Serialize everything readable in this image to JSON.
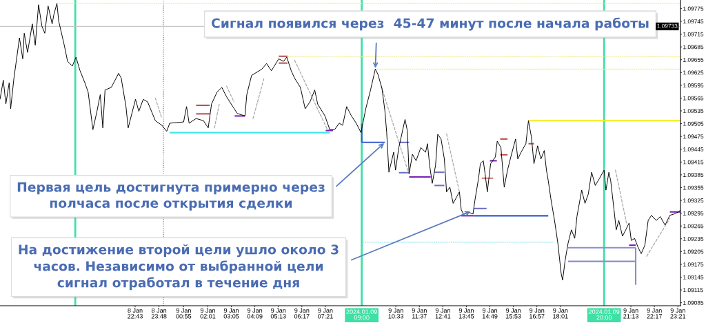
{
  "chart_data": {
    "type": "line",
    "annotations": [
      {
        "text": "Сигнал появился через  45-47 минут после начала работы",
        "x": "2024-01-09T09:37",
        "y": 1.09633
      },
      {
        "text": "Первая цель достигнута примерно через\nполчаса после открытия сделки",
        "x": "2024-01-09T10:03",
        "y": 1.09461
      },
      {
        "text": "На достижение второй цели ушло около 3\nчасов. Независимо от выбранной цели\nсигнал отработал в течение дня",
        "x": "2024-01-09T13:59",
        "y": 1.093
      }
    ],
    "series": [
      {
        "color": "#000000",
        "x": [
          "2024-01-08T16:35",
          "2024-01-08T16:44",
          "2024-01-08T16:51",
          "2024-01-08T17:00",
          "2024-01-08T17:04",
          "2024-01-08T17:13",
          "2024-01-08T17:28",
          "2024-01-08T17:37",
          "2024-01-08T17:41",
          "2024-01-08T17:50",
          "2024-01-08T18:03",
          "2024-01-08T18:11",
          "2024-01-08T18:20",
          "2024-01-08T18:29",
          "2024-01-08T18:37",
          "2024-01-08T18:46",
          "2024-01-08T18:57",
          "2024-01-08T19:02",
          "2024-01-08T19:10",
          "2024-01-08T19:15",
          "2024-01-08T19:30",
          "2024-01-08T19:39",
          "2024-01-08T19:52",
          "2024-01-08T20:02",
          "2024-01-08T20:13",
          "2024-01-08T20:26",
          "2024-01-08T20:35",
          "2024-01-08T20:48",
          "2024-01-08T20:59",
          "2024-01-08T21:08",
          "2024-01-08T21:15",
          "2024-01-08T21:21",
          "2024-01-08T21:38",
          "2024-01-08T21:58",
          "2024-01-08T22:05",
          "2024-01-08T22:18",
          "2024-01-08T22:24",
          "2024-01-08T22:44",
          "2024-01-08T22:53",
          "2024-01-08T23:05",
          "2024-01-08T23:17",
          "2024-01-08T23:38",
          "2024-01-08T23:56",
          "2024-01-09T00:09",
          "2024-01-09T00:17",
          "2024-01-09T00:55",
          "2024-01-09T01:03",
          "2024-01-09T01:10",
          "2024-01-09T01:29",
          "2024-01-09T01:49",
          "2024-01-09T02:02",
          "2024-01-09T02:11",
          "2024-01-09T02:26",
          "2024-01-09T02:39",
          "2024-01-09T02:52",
          "2024-01-09T03:09",
          "2024-01-09T03:21",
          "2024-01-09T03:42",
          "2024-01-09T03:47",
          "2024-01-09T04:00",
          "2024-01-09T04:28",
          "2024-01-09T04:41",
          "2024-01-09T04:54",
          "2024-01-09T05:14",
          "2024-01-09T05:27",
          "2024-01-09T05:36",
          "2024-01-09T05:48",
          "2024-01-09T05:57",
          "2024-01-09T06:13",
          "2024-01-09T06:26",
          "2024-01-09T06:39",
          "2024-01-09T06:52",
          "2024-01-09T07:00",
          "2024-01-09T07:20",
          "2024-01-09T07:33",
          "2024-01-09T07:46",
          "2024-01-09T07:59",
          "2024-01-09T08:08",
          "2024-01-09T08:19",
          "2024-01-09T08:32",
          "2024-01-09T08:45",
          "2024-01-09T08:58",
          "2024-01-09T09:11",
          "2024-01-09T09:24",
          "2024-01-09T09:37",
          "2024-01-09T09:44",
          "2024-01-09T09:55",
          "2024-01-09T10:03",
          "2024-01-09T10:08",
          "2024-01-09T10:14",
          "2024-01-09T10:27",
          "2024-01-09T10:32",
          "2024-01-09T10:41",
          "2024-01-09T10:49",
          "2024-01-09T10:58",
          "2024-01-09T11:04",
          "2024-01-09T11:09",
          "2024-01-09T11:18",
          "2024-01-09T11:28",
          "2024-01-09T11:41",
          "2024-01-09T11:54",
          "2024-01-09T11:59",
          "2024-01-09T12:05",
          "2024-01-09T12:12",
          "2024-01-09T12:21",
          "2024-01-09T12:27",
          "2024-01-09T12:36",
          "2024-01-09T12:45",
          "2024-01-09T12:51",
          "2024-01-09T13:00",
          "2024-01-09T13:09",
          "2024-01-09T13:19",
          "2024-01-09T13:26",
          "2024-01-09T13:31",
          "2024-01-09T13:37",
          "2024-01-09T13:50",
          "2024-01-09T14:03",
          "2024-01-09T14:08",
          "2024-01-09T14:18",
          "2024-01-09T14:23",
          "2024-01-09T14:31",
          "2024-01-09T14:36",
          "2024-01-09T14:42",
          "2024-01-09T14:51",
          "2024-01-09T15:04",
          "2024-01-09T15:09",
          "2024-01-09T15:19",
          "2024-01-09T15:28",
          "2024-01-09T15:37",
          "2024-01-09T15:46",
          "2024-01-09T15:59",
          "2024-01-09T16:05",
          "2024-01-09T16:14",
          "2024-01-09T16:27",
          "2024-01-09T16:34",
          "2024-01-09T16:42",
          "2024-01-09T16:49",
          "2024-01-09T16:59",
          "2024-01-09T17:08",
          "2024-01-09T17:17",
          "2024-01-09T17:23",
          "2024-01-09T17:28",
          "2024-01-09T17:35",
          "2024-01-09T17:45",
          "2024-01-09T17:54",
          "2024-01-09T18:03",
          "2024-01-09T18:07",
          "2024-01-09T18:14",
          "2024-01-09T18:22",
          "2024-01-09T18:31",
          "2024-01-09T18:40",
          "2024-01-09T18:46",
          "2024-01-09T18:59",
          "2024-01-09T19:08",
          "2024-01-09T19:17",
          "2024-01-09T19:26",
          "2024-01-09T19:36",
          "2024-01-09T19:47",
          "2024-01-09T20:00",
          "2024-01-09T20:05",
          "2024-01-09T20:13",
          "2024-01-09T20:18",
          "2024-01-09T20:27",
          "2024-01-09T20:33",
          "2024-01-09T20:40",
          "2024-01-09T20:50",
          "2024-01-09T20:59",
          "2024-01-09T21:08",
          "2024-01-09T21:14",
          "2024-01-09T21:23",
          "2024-01-09T21:32",
          "2024-01-09T21:41",
          "2024-01-09T21:51",
          "2024-01-09T22:00",
          "2024-01-09T22:09",
          "2024-01-09T22:22",
          "2024-01-09T22:33",
          "2024-01-09T22:46",
          "2024-01-09T22:59",
          "2024-01-09T23:10",
          "2024-01-09T23:23",
          "2024-01-09T23:28"
        ],
        "values": [
          1.09562,
          1.09607,
          1.09551,
          1.09601,
          1.0954,
          1.09612,
          1.09706,
          1.09657,
          1.09717,
          1.09672,
          1.09739,
          1.09689,
          1.09784,
          1.09734,
          1.09717,
          1.09781,
          1.09739,
          1.09762,
          1.09787,
          1.09745,
          1.09689,
          1.09651,
          1.0964,
          1.09661,
          1.09629,
          1.09601,
          1.09579,
          1.09491,
          1.09534,
          1.09573,
          1.09495,
          1.09584,
          1.0959,
          1.09623,
          1.09612,
          1.09545,
          1.09495,
          1.09562,
          1.09534,
          1.09562,
          1.09556,
          1.09512,
          1.09501,
          1.09487,
          1.09506,
          1.09509,
          1.09545,
          1.09506,
          1.09517,
          1.09512,
          1.09495,
          1.09551,
          1.09579,
          1.0959,
          1.09568,
          1.09545,
          1.09529,
          1.09523,
          1.09573,
          1.09618,
          1.09633,
          1.09646,
          1.09629,
          1.09657,
          1.09651,
          1.09661,
          1.09629,
          1.09612,
          1.0959,
          1.0954,
          1.09556,
          1.09584,
          1.09551,
          1.09523,
          1.09491,
          1.09491,
          1.09506,
          1.09501,
          1.09545,
          1.09523,
          1.09506,
          1.09484,
          1.0954,
          1.09584,
          1.09633,
          1.09621,
          1.09588,
          1.09536,
          1.09484,
          1.09391,
          1.09438,
          1.09396,
          1.09449,
          1.0948,
          1.09515,
          1.09489,
          1.09387,
          1.09433,
          1.09418,
          1.09449,
          1.09438,
          1.09458,
          1.09407,
          1.09365,
          1.09407,
          1.0948,
          1.09469,
          1.09422,
          1.09345,
          1.09356,
          1.09318,
          1.09334,
          1.09345,
          1.09303,
          1.09293,
          1.09298,
          1.09293,
          1.09324,
          1.09376,
          1.09411,
          1.09418,
          1.09387,
          1.09345,
          1.09411,
          1.09427,
          1.09464,
          1.09449,
          1.09356,
          1.09396,
          1.09427,
          1.09469,
          1.09422,
          1.09438,
          1.09458,
          1.09512,
          1.09474,
          1.09411,
          1.09453,
          1.09422,
          1.09442,
          1.09396,
          1.09371,
          1.09329,
          1.09278,
          1.09225,
          1.09154,
          1.09138,
          1.09185,
          1.09225,
          1.09256,
          1.09236,
          1.09287,
          1.09349,
          1.09318,
          1.0934,
          1.09391,
          1.0936,
          1.09376,
          1.09396,
          1.09349,
          1.09391,
          1.09371,
          1.09303,
          1.09256,
          1.09278,
          1.09241,
          1.09256,
          1.09272,
          1.09231,
          1.09236,
          1.09216,
          1.092,
          1.0922,
          1.09278,
          1.0929,
          1.09278,
          1.09287,
          1.09267,
          1.0929,
          1.09293,
          1.09298,
          1.09303
        ]
      },
      {
        "color": "#3ee6e6",
        "x": [
          "2024-01-09T00:17",
          "2024-01-09T07:33"
        ],
        "values": [
          1.09484,
          1.09484
        ]
      },
      {
        "color": "#3a5bd0",
        "x": [
          "2024-01-09T09:00",
          "2024-01-09T10:03"
        ],
        "values": [
          1.09461,
          1.09461
        ]
      },
      {
        "color": "#3a5bd0",
        "x": [
          "2024-01-09T09:00",
          "2024-01-09T09:00"
        ],
        "values": [
          1.09505,
          1.09461
        ]
      },
      {
        "color": "#7a22b8",
        "x": [
          "2024-01-09T13:31",
          "2024-01-09T14:03"
        ],
        "values": [
          1.09289,
          1.09289
        ]
      },
      {
        "color": "#3a5bd0",
        "x": [
          "2024-01-09T14:03",
          "2024-01-09T17:28"
        ],
        "values": [
          1.09289,
          1.09289
        ]
      },
      {
        "color": "#f2ec1c",
        "x": [
          "2024-01-09T16:34",
          "2024-01-09T23:28"
        ],
        "values": [
          1.09512,
          1.09512
        ]
      },
      {
        "color": "#eee98a",
        "line_style": "dotted",
        "x": [
          "2024-01-08T19:10",
          "2024-01-09T23:28"
        ],
        "values": [
          1.09787,
          1.09787
        ]
      },
      {
        "color": "#eee98a",
        "line_style": "dotted",
        "x": [
          "2024-01-09T05:40",
          "2024-01-09T23:28"
        ],
        "values": [
          1.09663,
          1.09663
        ]
      },
      {
        "color": "#eee98a",
        "line_style": "dotted",
        "x": [
          "2024-01-09T09:37",
          "2024-01-09T23:28"
        ],
        "values": [
          1.09633,
          1.09633
        ]
      },
      {
        "color": "#8fe3ee",
        "line_style": "dotted",
        "x": [
          "2024-01-09T09:03",
          "2024-01-09T17:41"
        ],
        "values": [
          1.09227,
          1.09227
        ]
      },
      {
        "color": "#7a22b8",
        "x": [
          "2024-01-09T11:09",
          "2024-01-09T12:08"
        ],
        "values": [
          1.0938,
          1.0938
        ]
      },
      {
        "color": "#7a22b8",
        "x": [
          "2024-01-09T14:49",
          "2024-01-09T15:08"
        ],
        "values": [
          1.09418,
          1.09418
        ]
      },
      {
        "color": "#7a22b8",
        "x": [
          "2024-01-09T21:08",
          "2024-01-09T21:26"
        ],
        "values": [
          1.0922,
          1.0922
        ]
      },
      {
        "color": "#7a22b8",
        "x": [
          "2024-01-09T22:59",
          "2024-01-09T23:28"
        ],
        "values": [
          1.09298,
          1.09298
        ]
      },
      {
        "color": "#7a22b8",
        "x": [
          "2024-01-09T07:22",
          "2024-01-09T07:42"
        ],
        "values": [
          1.09489,
          1.09489
        ]
      },
      {
        "color": "#7a22b8",
        "x": [
          "2024-01-09T03:14",
          "2024-01-09T03:42"
        ],
        "values": [
          1.09523,
          1.09523
        ]
      },
      {
        "color": "#b85450",
        "x": [
          "2024-01-09T01:29",
          "2024-01-09T02:06"
        ],
        "values": [
          1.09548,
          1.09548
        ]
      },
      {
        "color": "#b85450",
        "x": [
          "2024-01-09T01:29",
          "2024-01-09T02:06"
        ],
        "values": [
          1.09528,
          1.09528
        ]
      },
      {
        "color": "#b85450",
        "x": [
          "2024-01-09T05:14",
          "2024-01-09T05:38"
        ],
        "values": [
          1.09663,
          1.09663
        ]
      },
      {
        "color": "#b85450",
        "x": [
          "2024-01-09T05:14",
          "2024-01-09T05:38"
        ],
        "values": [
          1.09647,
          1.09647
        ]
      },
      {
        "color": "#6f6fc0",
        "x": [
          "2024-01-09T10:41",
          "2024-01-09T11:09"
        ],
        "values": [
          1.09461,
          1.09461
        ]
      },
      {
        "color": "#6f6fc0",
        "x": [
          "2024-01-09T10:41",
          "2024-01-09T11:09"
        ],
        "values": [
          1.0939,
          1.0939
        ]
      },
      {
        "color": "#6f6fc0",
        "x": [
          "2024-01-09T12:18",
          "2024-01-09T12:45"
        ],
        "values": [
          1.09391,
          1.09391
        ]
      },
      {
        "color": "#6f6fc0",
        "x": [
          "2024-01-09T12:18",
          "2024-01-09T12:45"
        ],
        "values": [
          1.0936,
          1.0936
        ]
      },
      {
        "color": "#d08080",
        "x": [
          "2024-01-09T14:27",
          "2024-01-09T14:58"
        ],
        "values": [
          1.09377,
          1.09377
        ]
      },
      {
        "color": "#b85450",
        "x": [
          "2024-01-09T15:17",
          "2024-01-09T15:37"
        ],
        "values": [
          1.09469,
          1.09469
        ]
      },
      {
        "color": "#b85450",
        "x": [
          "2024-01-09T15:17",
          "2024-01-09T15:37"
        ],
        "values": [
          1.09432,
          1.09432
        ]
      },
      {
        "color": "#b85450",
        "x": [
          "2024-01-09T16:34",
          "2024-01-09T16:49"
        ],
        "values": [
          1.09458,
          1.09458
        ]
      },
      {
        "color": "#6f6fc0",
        "x": [
          "2024-01-09T14:05",
          "2024-01-09T14:40"
        ],
        "values": [
          1.09306,
          1.09306
        ]
      },
      {
        "color": "#8c8cd0",
        "x": [
          "2024-01-09T18:22",
          "2024-01-09T21:26"
        ],
        "values": [
          1.09214,
          1.09214
        ]
      },
      {
        "color": "#8c8cd0",
        "x": [
          "2024-01-09T18:22",
          "2024-01-09T21:26"
        ],
        "values": [
          1.09182,
          1.09182
        ]
      },
      {
        "color": "#8c8cd0",
        "x": [
          "2024-01-09T21:26",
          "2024-01-09T21:26"
        ],
        "values": [
          1.09214,
          1.09127
        ]
      },
      {
        "color": "#a8a8a8",
        "line_style": "dashed",
        "x": [
          "2024-01-08T23:38",
          "2024-01-08T23:56"
        ],
        "values": [
          1.09565,
          1.09517
        ]
      },
      {
        "color": "#a8a8a8",
        "line_style": "dashed",
        "x": [
          "2024-01-09T02:19",
          "2024-01-09T02:32"
        ],
        "values": [
          1.09495,
          1.09551
        ]
      },
      {
        "color": "#a8a8a8",
        "line_style": "dashed",
        "x": [
          "2024-01-09T02:52",
          "2024-01-09T03:12"
        ],
        "values": [
          1.09593,
          1.09556
        ]
      },
      {
        "color": "#a8a8a8",
        "line_style": "dashed",
        "x": [
          "2024-01-09T04:04",
          "2024-01-09T04:34"
        ],
        "values": [
          1.09517,
          1.09612
        ]
      },
      {
        "color": "#a8a8a8",
        "line_style": "dashed",
        "x": [
          "2024-01-09T05:57",
          "2024-01-09T07:26"
        ],
        "values": [
          1.09654,
          1.09492
        ]
      },
      {
        "color": "#a8a8a8",
        "line_style": "dashed",
        "x": [
          "2024-01-09T09:53",
          "2024-01-09T11:07"
        ],
        "values": [
          1.09593,
          1.09391
        ]
      },
      {
        "color": "#a8a8a8",
        "line_style": "dashed",
        "x": [
          "2024-01-09T12:51",
          "2024-01-09T13:26"
        ],
        "values": [
          1.09481,
          1.09345
        ]
      },
      {
        "color": "#a8a8a8",
        "line_style": "dashed",
        "x": [
          "2024-01-09T20:31",
          "2024-01-09T21:01"
        ],
        "values": [
          1.09396,
          1.09272
        ]
      },
      {
        "color": "#a8a8a8",
        "line_style": "dashed",
        "x": [
          "2024-01-09T21:56",
          "2024-01-09T22:59"
        ],
        "values": [
          1.09194,
          1.09283
        ]
      }
    ],
    "ref_lines": [
      {
        "axis": "x",
        "value": "2024-01-08T20:00",
        "color": "#3fe0a5"
      },
      {
        "axis": "x",
        "value": "2024-01-09T00:00",
        "color": "#666666",
        "line_style": "dotted"
      },
      {
        "axis": "x",
        "value": "2024-01-09T09:00",
        "label": "2024.01.09 09:00",
        "color": "#3fe0a5"
      },
      {
        "axis": "x",
        "value": "2024-01-09T20:00",
        "label": "2024.01.09 20:00",
        "color": "#3fe0a5"
      },
      {
        "axis": "y",
        "value": 1.09733,
        "label": "1.09733",
        "color": "#c8c8c8"
      }
    ],
    "xlim": [
      "2024-01-08T16:35",
      "2024-01-09T23:28"
    ],
    "xticks": [
      {
        "value": "2024-01-08T22:43",
        "label": "8 Jan 22:43"
      },
      {
        "value": "2024-01-08T23:48",
        "label": "8 Jan 23:48"
      },
      {
        "value": "2024-01-09T00:55",
        "label": "9 Jan 00:55"
      },
      {
        "value": "2024-01-09T02:01",
        "label": "9 Jan 02:01"
      },
      {
        "value": "2024-01-09T03:05",
        "label": "9 Jan 03:05"
      },
      {
        "value": "2024-01-09T04:09",
        "label": "9 Jan 04:09"
      },
      {
        "value": "2024-01-09T05:13",
        "label": "9 Jan 05:13"
      },
      {
        "value": "2024-01-09T06:17",
        "label": "9 Jan 06:17"
      },
      {
        "value": "2024-01-09T07:21",
        "label": "9 Jan 07:21"
      },
      {
        "value": "2024-01-09T10:33",
        "label": "9 Jan 10:33"
      },
      {
        "value": "2024-01-09T11:37",
        "label": "9 Jan 11:37"
      },
      {
        "value": "2024-01-09T12:41",
        "label": "9 Jan 12:41"
      },
      {
        "value": "2024-01-09T13:45",
        "label": "9 Jan 13:45"
      },
      {
        "value": "2024-01-09T14:49",
        "label": "9 Jan 14:49"
      },
      {
        "value": "2024-01-09T15:53",
        "label": "9 Jan 15:53"
      },
      {
        "value": "2024-01-09T16:57",
        "label": "9 Jan 16:57"
      },
      {
        "value": "2024-01-09T18:01",
        "label": "9 Jan 18:01"
      },
      {
        "value": "2024-01-09T21:13",
        "label": "9 Jan 21:13"
      },
      {
        "value": "2024-01-09T22:17",
        "label": "9 Jan 22:17"
      },
      {
        "value": "2024-01-09T23:21",
        "label": "9 Jan 23:21"
      }
    ],
    "ylim": [
      1.09078,
      1.09795
    ],
    "yticks": [
      1.09085,
      1.09115,
      1.09145,
      1.09175,
      1.09205,
      1.09235,
      1.09265,
      1.09295,
      1.09325,
      1.09355,
      1.09385,
      1.09415,
      1.09445,
      1.09475,
      1.09505,
      1.09535,
      1.09565,
      1.09595,
      1.09625,
      1.09655,
      1.09685,
      1.09715,
      1.09745,
      1.09775
    ]
  }
}
